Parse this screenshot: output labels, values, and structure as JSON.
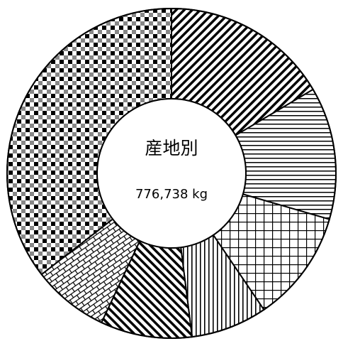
{
  "chart_data": {
    "type": "donut",
    "center_title": "産地別",
    "center_total": "776,738 kg",
    "slices": [
      {
        "value": 16.5,
        "pattern": "diag-down"
      },
      {
        "value": 13.0,
        "pattern": "horizontal"
      },
      {
        "value": 11.0,
        "pattern": "grid"
      },
      {
        "value": 7.5,
        "pattern": "vertical"
      },
      {
        "value": 9.0,
        "pattern": "diag-down-2"
      },
      {
        "value": 7.5,
        "pattern": "brick"
      },
      {
        "value": 35.5,
        "pattern": "checker"
      }
    ]
  }
}
